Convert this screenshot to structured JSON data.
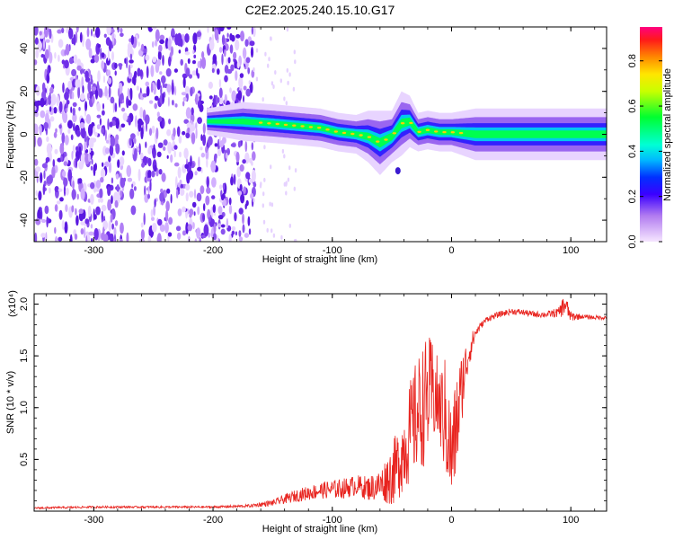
{
  "figure": {
    "title": "C2E2.2025.240.15.10.G17"
  },
  "chart_data": [
    {
      "type": "heatmap",
      "xlabel": "Height of straight line (km)",
      "ylabel": "Frequency (Hz)",
      "xlim": [
        -350,
        130
      ],
      "ylim": [
        -50,
        50
      ],
      "x_ticks": [
        -300,
        -200,
        -100,
        0,
        100
      ],
      "y_ticks": [
        -40,
        -20,
        0,
        20,
        40
      ],
      "colorbar": {
        "label": "Normalized spectral amplitude",
        "range": [
          0,
          0.95
        ],
        "ticks": [
          0.0,
          0.2,
          0.4,
          0.6,
          0.8
        ]
      },
      "signal_track": {
        "x": [
          -205,
          -175,
          -150,
          -130,
          -110,
          -95,
          -80,
          -70,
          -60,
          -50,
          -42,
          -35,
          -28,
          -20,
          -10,
          0,
          20,
          60,
          100,
          130
        ],
        "frequency": [
          6,
          6,
          5,
          4,
          3,
          1,
          0,
          -1,
          -4,
          -1,
          5,
          6,
          1,
          2,
          1,
          1,
          0,
          0,
          0,
          0
        ],
        "width": [
          2,
          3,
          3,
          3,
          3,
          3,
          3,
          4,
          5,
          4,
          5,
          4,
          3,
          3,
          3,
          3,
          4,
          4,
          4,
          4
        ]
      },
      "noise_region": {
        "x_from": -350,
        "x_to": -165
      }
    },
    {
      "type": "line",
      "xlabel": "Height of straight line (km)",
      "ylabel": "SNR (10 * v/v)",
      "scale_label": "(x10⁴)",
      "xlim": [
        -350,
        130
      ],
      "ylim": [
        0,
        2.1
      ],
      "x_ticks": [
        -300,
        -200,
        -100,
        0,
        100
      ],
      "y_ticks": [
        0.5,
        1.0,
        1.5,
        2.0
      ],
      "y_tick_labels": [
        "0.5",
        "1.0",
        "1.5",
        "2.0"
      ],
      "series": [
        {
          "color": "#e8231e",
          "x": [
            -350,
            -300,
            -250,
            -200,
            -170,
            -150,
            -130,
            -110,
            -90,
            -80,
            -70,
            -60,
            -50,
            -45,
            -40,
            -35,
            -30,
            -25,
            -20,
            -15,
            -10,
            -5,
            0,
            5,
            10,
            15,
            20,
            25,
            30,
            40,
            50,
            60,
            70,
            80,
            90,
            95,
            100,
            110,
            120,
            130
          ],
          "y": [
            0.03,
            0.04,
            0.04,
            0.04,
            0.05,
            0.08,
            0.15,
            0.2,
            0.22,
            0.25,
            0.22,
            0.25,
            0.35,
            0.45,
            0.6,
            0.75,
            0.9,
            1.0,
            1.1,
            1.15,
            1.0,
            0.9,
            0.5,
            0.9,
            1.3,
            1.55,
            1.72,
            1.8,
            1.86,
            1.9,
            1.93,
            1.92,
            1.9,
            1.9,
            1.92,
            2.0,
            1.88,
            1.88,
            1.87,
            1.87
          ],
          "noise_amplitude": [
            0.01,
            0.01,
            0.01,
            0.01,
            0.015,
            0.03,
            0.06,
            0.08,
            0.1,
            0.1,
            0.12,
            0.15,
            0.3,
            0.35,
            0.4,
            0.5,
            0.55,
            0.6,
            0.6,
            0.5,
            0.4,
            0.6,
            0.5,
            0.5,
            0.3,
            0.15,
            0.06,
            0.03,
            0.03,
            0.03,
            0.03,
            0.03,
            0.03,
            0.03,
            0.05,
            0.12,
            0.05,
            0.02,
            0.02,
            0.02
          ]
        }
      ]
    }
  ]
}
